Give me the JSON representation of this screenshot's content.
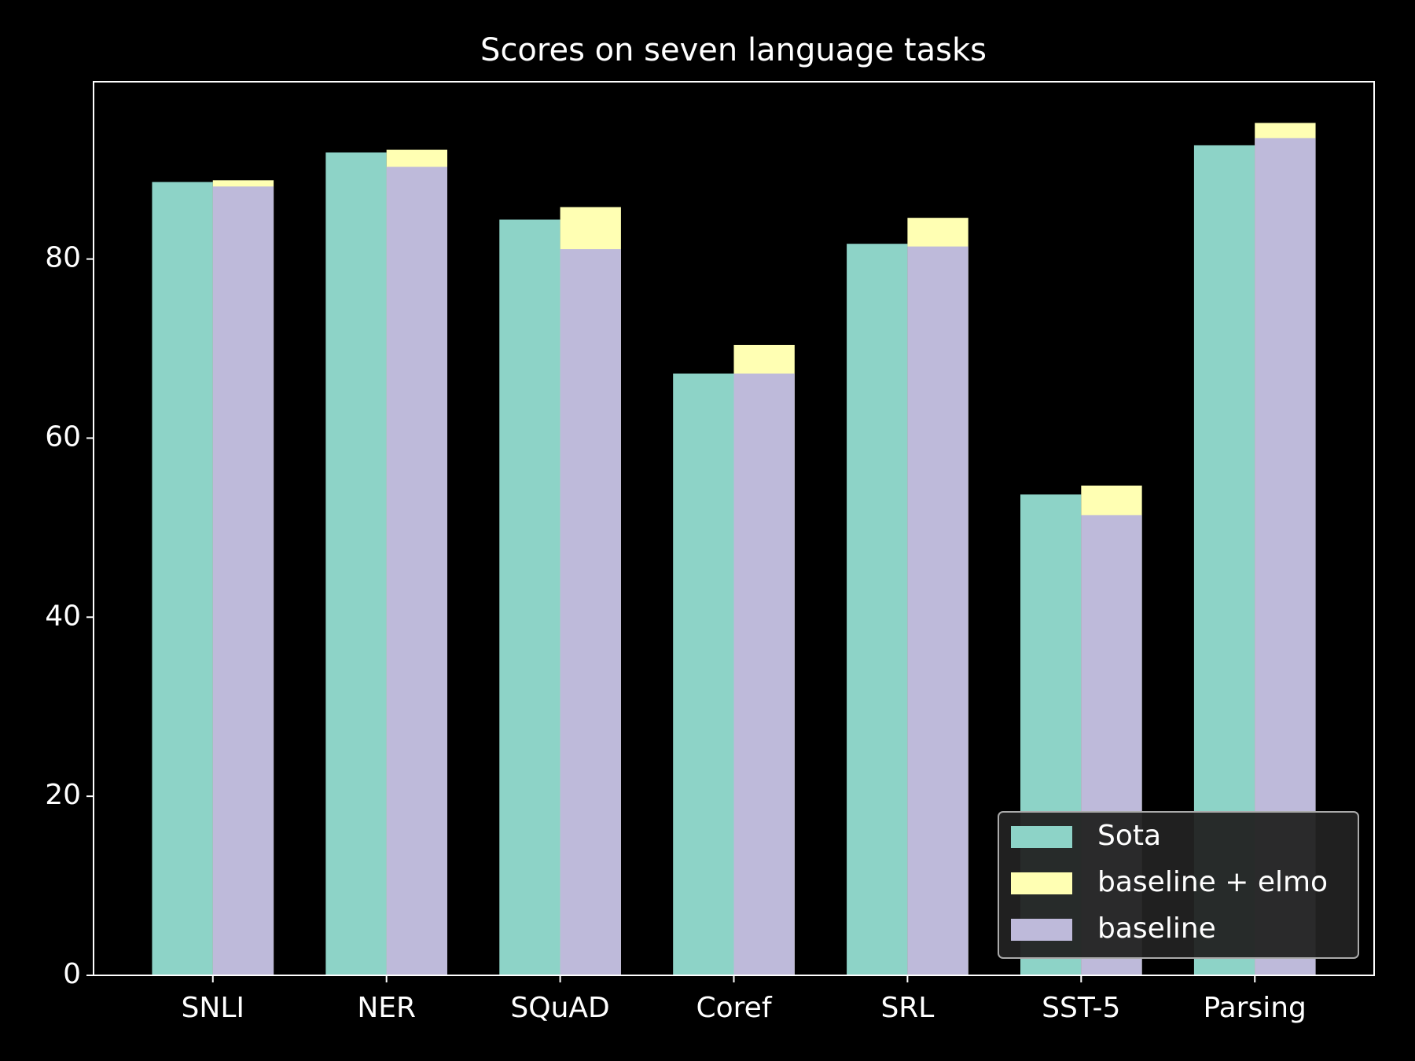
{
  "chart_data": {
    "type": "bar",
    "title": "Scores on seven language tasks",
    "categories": [
      "SNLI",
      "NER",
      "SQuAD",
      "Coref",
      "SRL",
      "SST-5",
      "Parsing"
    ],
    "series": [
      {
        "name": "Sota",
        "color": "#8dd3c7",
        "values": [
          88.6,
          91.9,
          84.4,
          67.2,
          81.7,
          53.7,
          92.7
        ]
      },
      {
        "name": "baseline + elmo",
        "color": "#ffffb3",
        "values": [
          88.8,
          92.2,
          85.8,
          70.4,
          84.6,
          54.7,
          95.2
        ]
      },
      {
        "name": "baseline",
        "color": "#bebada",
        "values": [
          88.1,
          90.3,
          81.1,
          67.2,
          81.4,
          51.4,
          93.5
        ]
      }
    ],
    "ylim": [
      0,
      99.8
    ],
    "yticks": [
      0,
      20,
      40,
      60,
      80
    ],
    "grid": false,
    "legend": "lower right"
  }
}
